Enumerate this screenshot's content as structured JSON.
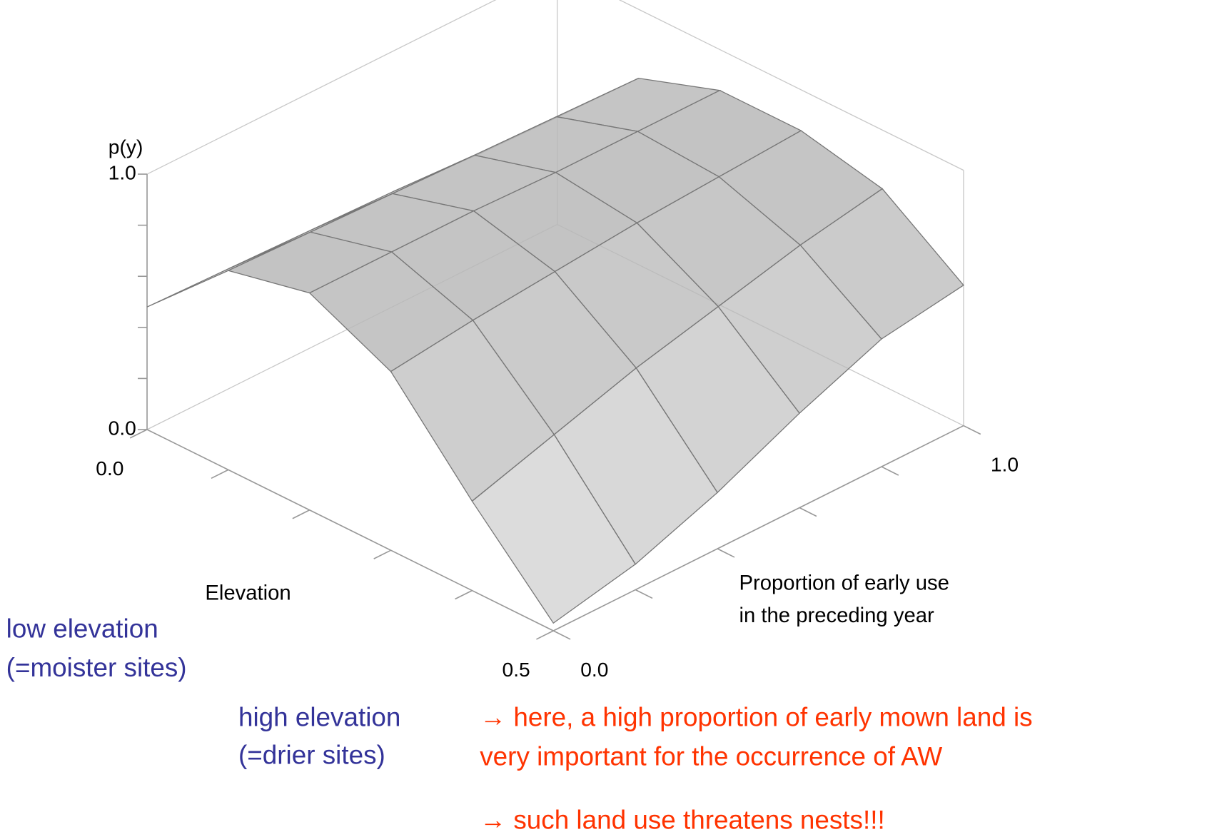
{
  "chart_data": {
    "type": "surface",
    "z_label": "p(y)",
    "x_label": "Elevation",
    "y_label": [
      "Proportion of early use",
      "in the preceding year"
    ],
    "xlim": [
      0,
      0.5
    ],
    "ylim": [
      0,
      1
    ],
    "zlim": [
      0,
      1
    ],
    "xticks": [
      {
        "value": 0,
        "label": "0.0"
      },
      {
        "value": 0.1,
        "label": null
      },
      {
        "value": 0.2,
        "label": null
      },
      {
        "value": 0.3,
        "label": null
      },
      {
        "value": 0.4,
        "label": null
      },
      {
        "value": 0.5,
        "label": "0.5"
      }
    ],
    "yticks": [
      {
        "value": 0,
        "label": "0.0"
      },
      {
        "value": 0.2,
        "label": null
      },
      {
        "value": 0.4,
        "label": null
      },
      {
        "value": 0.6,
        "label": null
      },
      {
        "value": 0.8,
        "label": null
      },
      {
        "value": 1,
        "label": "1.0"
      }
    ],
    "zticks": [
      {
        "value": 0,
        "label": "0.0"
      },
      {
        "value": 0.2,
        "label": null
      },
      {
        "value": 0.4,
        "label": null
      },
      {
        "value": 0.6,
        "label": null
      },
      {
        "value": 0.8,
        "label": null
      },
      {
        "value": 1,
        "label": "1.0"
      }
    ],
    "surface": {
      "color": "#b8b8b8",
      "elevation": [
        0,
        0.1,
        0.2,
        0.3,
        0.4,
        0.5
      ],
      "proportion": [
        0,
        0.2,
        0.4,
        0.6,
        0.8,
        1
      ],
      "z": [
        [
          0.48,
          0.47,
          0.46,
          0.45,
          0.43,
          0.42
        ],
        [
          0.78,
          0.77,
          0.76,
          0.75,
          0.74,
          0.73
        ],
        [
          0.85,
          0.85,
          0.85,
          0.84,
          0.84,
          0.84
        ],
        [
          0.7,
          0.74,
          0.77,
          0.8,
          0.82,
          0.84
        ],
        [
          0.35,
          0.45,
          0.55,
          0.63,
          0.71,
          0.77
        ],
        [
          0.03,
          0.1,
          0.22,
          0.37,
          0.5,
          0.55
        ]
      ]
    },
    "annotations": [
      {
        "text": "low elevation",
        "color": "#333399"
      },
      {
        "text": "(=moister sites)",
        "color": "#333399"
      },
      {
        "text": "high elevation",
        "color": "#333399"
      },
      {
        "text": "(=drier sites)",
        "color": "#333399"
      },
      {
        "text": "→ here, a high proportion of early mown land is",
        "color": "#ff3300"
      },
      {
        "text": "very important for the occurrence of AW",
        "color": "#ff3300"
      },
      {
        "text": "→ such land use threatens nests!!!",
        "color": "#ff3300"
      }
    ]
  }
}
